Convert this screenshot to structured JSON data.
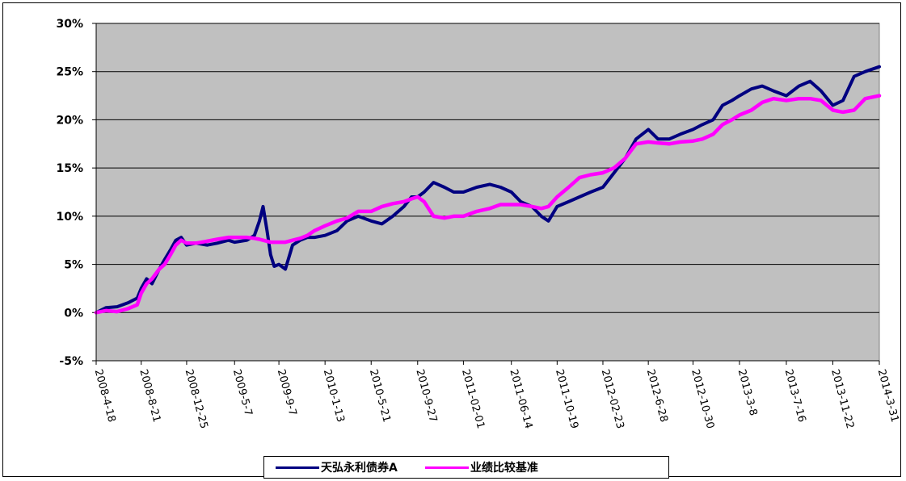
{
  "chart_data": {
    "type": "line",
    "title": "",
    "xlabel": "",
    "ylabel": "",
    "ylim": [
      -0.05,
      0.3
    ],
    "y_ticks": [
      "30%",
      "25%",
      "20%",
      "15%",
      "10%",
      "5%",
      "0%",
      "-5%"
    ],
    "y_tick_values": [
      0.3,
      0.25,
      0.2,
      0.15,
      0.1,
      0.05,
      0.0,
      -0.05
    ],
    "x_tick_labels": [
      "2008-4-18",
      "2008-8-21",
      "2008-12-25",
      "2009-5-7",
      "2009-9-7",
      "2010-1-13",
      "2010-5-21",
      "2010-9-27",
      "2011-02-01",
      "2011-06-14",
      "2011-10-19",
      "2012-02-23",
      "2012-6-28",
      "2012-10-30",
      "2013-3-8",
      "2013-7-16",
      "2013-11-22",
      "2014-3-31"
    ],
    "grid": "horizontal",
    "plot_background": "#c0c0c0",
    "legend_position": "bottom",
    "series": [
      {
        "name": "天弘永利债券A",
        "color": "#000080",
        "x": [
          "2008-4-18",
          "2008-5-15",
          "2008-6-15",
          "2008-7-15",
          "2008-8-10",
          "2008-8-21",
          "2008-9-5",
          "2008-9-20",
          "2008-10-10",
          "2008-10-25",
          "2008-11-10",
          "2008-11-25",
          "2008-12-10",
          "2008-12-25",
          "2009-1-20",
          "2009-2-20",
          "2009-3-20",
          "2009-4-20",
          "2009-5-7",
          "2009-6-10",
          "2009-7-1",
          "2009-7-15",
          "2009-7-25",
          "2009-8-5",
          "2009-8-15",
          "2009-8-25",
          "2009-9-7",
          "2009-9-25",
          "2009-10-15",
          "2009-11-5",
          "2009-11-25",
          "2009-12-15",
          "2010-1-13",
          "2010-2-15",
          "2010-3-15",
          "2010-4-15",
          "2010-5-21",
          "2010-6-20",
          "2010-7-20",
          "2010-8-20",
          "2010-9-10",
          "2010-9-27",
          "2010-10-15",
          "2010-11-10",
          "2010-12-10",
          "2011-01-05",
          "2011-02-01",
          "2011-03-10",
          "2011-04-15",
          "2011-05-15",
          "2011-06-14",
          "2011-07-10",
          "2011-08-10",
          "2011-09-05",
          "2011-09-25",
          "2011-10-19",
          "2011-11-20",
          "2011-12-20",
          "2012-01-20",
          "2012-02-23",
          "2012-03-25",
          "2012-04-25",
          "2012-05-25",
          "2012-6-28",
          "2012-7-25",
          "2012-8-25",
          "2012-9-25",
          "2012-10-30",
          "2012-11-25",
          "2012-12-25",
          "2013-01-20",
          "2013-02-15",
          "2013-3-8",
          "2013-4-10",
          "2013-5-10",
          "2013-6-10",
          "2013-7-16",
          "2013-8-20",
          "2013-9-20",
          "2013-10-20",
          "2013-11-22",
          "2013-12-20",
          "2014-01-20",
          "2014-02-20",
          "2014-3-31"
        ],
        "values": [
          0.0,
          0.005,
          0.006,
          0.01,
          0.015,
          0.025,
          0.035,
          0.03,
          0.045,
          0.055,
          0.065,
          0.075,
          0.078,
          0.07,
          0.072,
          0.07,
          0.072,
          0.075,
          0.073,
          0.075,
          0.08,
          0.095,
          0.11,
          0.085,
          0.06,
          0.048,
          0.05,
          0.045,
          0.07,
          0.075,
          0.078,
          0.078,
          0.08,
          0.085,
          0.095,
          0.1,
          0.095,
          0.092,
          0.1,
          0.11,
          0.12,
          0.12,
          0.125,
          0.135,
          0.13,
          0.125,
          0.125,
          0.13,
          0.133,
          0.13,
          0.125,
          0.115,
          0.11,
          0.1,
          0.095,
          0.11,
          0.115,
          0.12,
          0.125,
          0.13,
          0.145,
          0.16,
          0.18,
          0.19,
          0.18,
          0.18,
          0.185,
          0.19,
          0.195,
          0.2,
          0.215,
          0.22,
          0.225,
          0.232,
          0.235,
          0.23,
          0.225,
          0.235,
          0.24,
          0.23,
          0.215,
          0.22,
          0.245,
          0.25,
          0.255
        ]
      },
      {
        "name": "业绩比较基准",
        "color": "#ff00ff",
        "x": [
          "2008-4-18",
          "2008-5-15",
          "2008-6-15",
          "2008-7-15",
          "2008-8-10",
          "2008-8-21",
          "2008-9-5",
          "2008-9-20",
          "2008-10-10",
          "2008-10-25",
          "2008-11-10",
          "2008-11-25",
          "2008-12-10",
          "2008-12-25",
          "2009-1-20",
          "2009-2-20",
          "2009-3-20",
          "2009-4-20",
          "2009-5-7",
          "2009-6-10",
          "2009-7-1",
          "2009-7-15",
          "2009-7-25",
          "2009-8-5",
          "2009-8-15",
          "2009-8-25",
          "2009-9-7",
          "2009-9-25",
          "2009-10-15",
          "2009-11-5",
          "2009-11-25",
          "2009-12-15",
          "2010-1-13",
          "2010-2-15",
          "2010-3-15",
          "2010-4-15",
          "2010-5-21",
          "2010-6-20",
          "2010-7-20",
          "2010-8-20",
          "2010-9-10",
          "2010-9-27",
          "2010-10-15",
          "2010-11-10",
          "2010-12-10",
          "2011-01-05",
          "2011-02-01",
          "2011-03-10",
          "2011-04-15",
          "2011-05-15",
          "2011-06-14",
          "2011-07-10",
          "2011-08-10",
          "2011-09-05",
          "2011-09-25",
          "2011-10-19",
          "2011-11-20",
          "2011-12-20",
          "2012-01-20",
          "2012-02-23",
          "2012-03-25",
          "2012-04-25",
          "2012-05-25",
          "2012-6-28",
          "2012-7-25",
          "2012-8-25",
          "2012-9-25",
          "2012-10-30",
          "2012-11-25",
          "2012-12-25",
          "2013-01-20",
          "2013-02-15",
          "2013-3-8",
          "2013-4-10",
          "2013-5-10",
          "2013-6-10",
          "2013-7-16",
          "2013-8-20",
          "2013-9-20",
          "2013-10-20",
          "2013-11-22",
          "2013-12-20",
          "2014-01-20",
          "2014-02-20",
          "2014-3-31"
        ],
        "values": [
          0.0,
          0.002,
          0.001,
          0.004,
          0.008,
          0.02,
          0.03,
          0.035,
          0.045,
          0.05,
          0.06,
          0.07,
          0.075,
          0.072,
          0.072,
          0.074,
          0.076,
          0.078,
          0.078,
          0.078,
          0.077,
          0.076,
          0.075,
          0.074,
          0.073,
          0.073,
          0.073,
          0.073,
          0.075,
          0.077,
          0.08,
          0.085,
          0.09,
          0.095,
          0.098,
          0.105,
          0.105,
          0.11,
          0.113,
          0.115,
          0.118,
          0.12,
          0.115,
          0.1,
          0.098,
          0.1,
          0.1,
          0.105,
          0.108,
          0.112,
          0.112,
          0.112,
          0.11,
          0.108,
          0.11,
          0.12,
          0.13,
          0.14,
          0.143,
          0.145,
          0.15,
          0.16,
          0.175,
          0.177,
          0.176,
          0.175,
          0.177,
          0.178,
          0.18,
          0.185,
          0.195,
          0.2,
          0.205,
          0.21,
          0.218,
          0.222,
          0.22,
          0.222,
          0.222,
          0.22,
          0.21,
          0.208,
          0.21,
          0.222,
          0.225
        ]
      }
    ]
  }
}
